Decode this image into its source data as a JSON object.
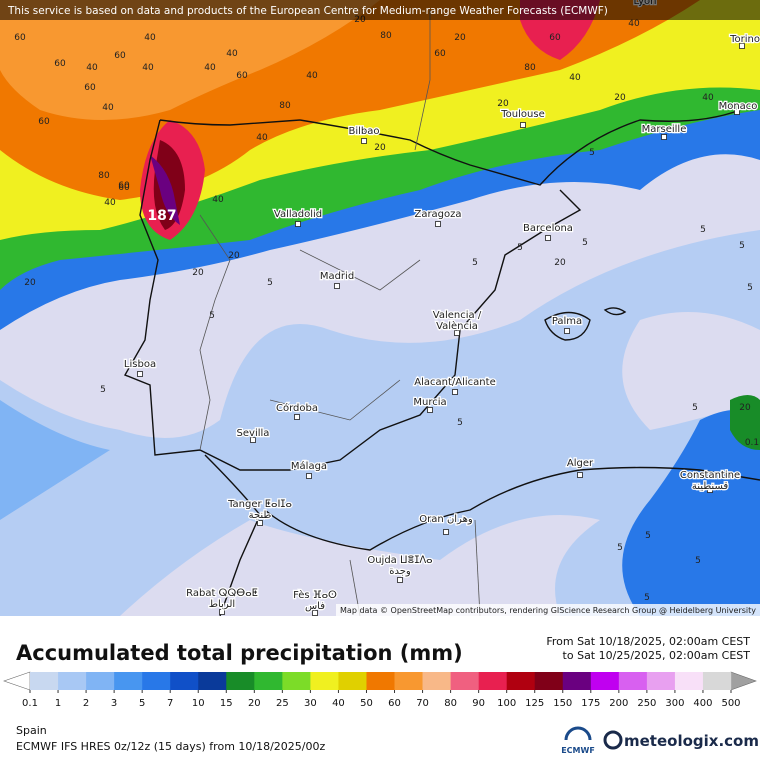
{
  "banner": "This service is based on data and products of the European Centre for Medium-range Weather Forecasts (ECMWF)",
  "map": {
    "cities": [
      "Lyon",
      "Torino",
      "Monaco",
      "Toulouse",
      "Marseille",
      "Bilbao",
      "Valladolid",
      "Zaragoza",
      "Barcelona",
      "Madrid",
      "Valencia /\nValència",
      "Palma",
      "Lisboa",
      "Alacant/Alicante",
      "Murcia",
      "Córdoba",
      "Sevilla",
      "Málaga",
      "Alger",
      "Constantine\nقسنطينة",
      "Tanger ⵟⴰⵏⵊⴰ\nطنجة",
      "Oran وهران",
      "Oujda ⵡⴻⵊⴷⴰ\nوجدة",
      "Rabat ⵕⵕⴱⴰⵟ\nالرباط",
      "Fès ⴼⴰⵙ\nفاس"
    ],
    "max_label": "187",
    "contour_labels": [
      "60",
      "40",
      "60",
      "40",
      "40",
      "60",
      "60",
      "40",
      "60",
      "80",
      "40",
      "60",
      "40",
      "20",
      "60",
      "40",
      "40",
      "20",
      "20",
      "40",
      "60",
      "80",
      "80",
      "60",
      "40",
      "20",
      "20",
      "40",
      "40",
      "80",
      "60",
      "20",
      "5",
      "5",
      "5",
      "20",
      "5",
      "5",
      "5",
      "5",
      "5",
      "20",
      "40",
      "5",
      "5",
      "20",
      "0.1",
      "5",
      "5",
      "5",
      "5",
      "20",
      "5",
      "5"
    ],
    "attribution": "Map data © OpenStreetMap contributors, rendering GIScience Research Group @ Heidelberg University"
  },
  "legend": {
    "title": "Accumulated total precipitation (mm)",
    "from": "From Sat 10/18/2025, 02:00am CEST",
    "to": "to Sat 10/25/2025, 02:00am CEST",
    "ticks": [
      "0.1",
      "1",
      "2",
      "3",
      "5",
      "7",
      "10",
      "15",
      "20",
      "25",
      "30",
      "40",
      "50",
      "60",
      "70",
      "80",
      "90",
      "100",
      "125",
      "150",
      "175",
      "200",
      "250",
      "300",
      "400",
      "500"
    ],
    "under_color": "#ffffff",
    "over_color": "#a0a0a0",
    "colors": [
      "#c8d8f0",
      "#a8c8f4",
      "#80b4f4",
      "#4896f0",
      "#2878e8",
      "#1050c8",
      "#0a3a9a",
      "#188c28",
      "#30b830",
      "#7cdc28",
      "#f0f020",
      "#e0d000",
      "#f07800",
      "#f89830",
      "#f8b888",
      "#f06080",
      "#e82050",
      "#b00010",
      "#800018",
      "#6a0080",
      "#c000f0",
      "#d860f0",
      "#e8a0f0",
      "#f8e0f8",
      "#d8d8d8"
    ]
  },
  "footer": {
    "region": "Spain",
    "model": "ECMWF IFS HRES 0z/12z (15 days) from  10/18/2025/00z",
    "ecmwf": "ECMWF",
    "brand": "meteologix.com"
  }
}
